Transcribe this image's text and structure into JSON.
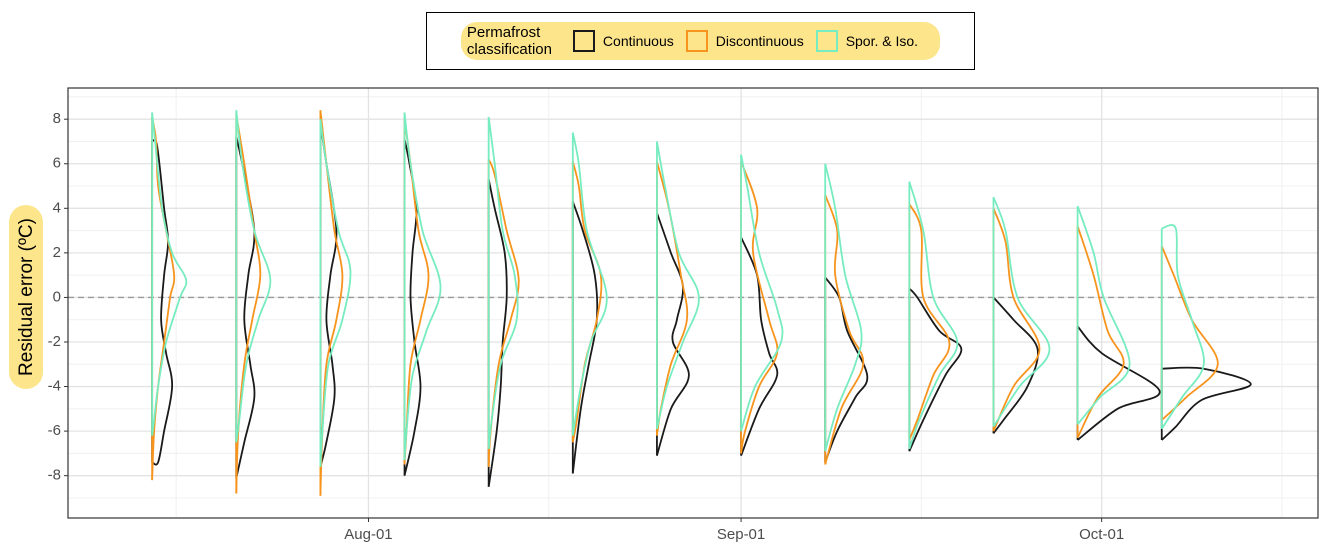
{
  "chart_data": {
    "type": "violin",
    "y_label": "Residual error (ºC)",
    "legend_title": "Permafrost classification",
    "legend_position": "top",
    "grid": true,
    "xlim": [
      "Jul-07",
      "Oct-19"
    ],
    "xticks": [
      "Aug-01",
      "Sep-01",
      "Oct-01"
    ],
    "x_minor_grid": [
      "Jul-16",
      "Aug-16",
      "Sep-16",
      "Oct-16"
    ],
    "ylim": [
      -9.9,
      9.4
    ],
    "yticks": [
      -8,
      -6,
      -4,
      -2,
      0,
      2,
      4,
      6,
      8
    ],
    "y_minor_grid": [
      -9,
      -7,
      -5,
      -3,
      -1,
      1,
      3,
      5,
      7,
      9
    ],
    "hline": 0,
    "series": [
      {
        "name": "Continuous",
        "color": "#1a1a1a",
        "violins": [
          {
            "x": "Jul-14",
            "y": [
              7.0,
              6.8,
              4,
              2.5,
              1,
              -1,
              -2.5,
              -4,
              -6,
              -7.4,
              -7.4
            ],
            "density": [
              0,
              0.05,
              0.12,
              0.16,
              0.12,
              0.09,
              0.14,
              0.2,
              0.12,
              0.06,
              0
            ]
          },
          {
            "x": "Jul-21",
            "y": [
              7.2,
              6,
              3,
              1,
              -1,
              -3,
              -4.5,
              -6.5,
              -8.1
            ],
            "density": [
              0,
              0.06,
              0.18,
              0.12,
              0.08,
              0.14,
              0.18,
              0.08,
              0
            ]
          },
          {
            "x": "Jul-28",
            "y": [
              7.8,
              6,
              3,
              1,
              -1,
              -3,
              -4.5,
              -6.5,
              -7.6
            ],
            "density": [
              0,
              0.06,
              0.16,
              0.1,
              0.06,
              0.12,
              0.14,
              0.06,
              0
            ]
          },
          {
            "x": "Aug-04",
            "y": [
              7.1,
              6,
              4,
              2,
              0,
              -2,
              -4,
              -6,
              -8
            ],
            "density": [
              0,
              0.05,
              0.12,
              0.08,
              0.06,
              0.1,
              0.16,
              0.1,
              0
            ]
          },
          {
            "x": "Aug-11",
            "y": [
              5.3,
              4,
              2,
              0,
              -2,
              -4,
              -6,
              -8.5
            ],
            "density": [
              0,
              0.06,
              0.16,
              0.18,
              0.14,
              0.12,
              0.08,
              0
            ]
          },
          {
            "x": "Aug-18",
            "y": [
              4.3,
              3,
              1,
              -1,
              -3,
              -5,
              -7.9
            ],
            "density": [
              0,
              0.1,
              0.22,
              0.24,
              0.16,
              0.08,
              0
            ]
          },
          {
            "x": "Aug-25",
            "y": [
              3.8,
              2,
              0.5,
              -1,
              -2,
              -3.5,
              -5,
              -7.1
            ],
            "density": [
              0,
              0.14,
              0.26,
              0.2,
              0.16,
              0.32,
              0.14,
              0
            ]
          },
          {
            "x": "Sep-01",
            "y": [
              2.7,
              1,
              -1,
              -2.5,
              -3.5,
              -5,
              -7.1
            ],
            "density": [
              0,
              0.16,
              0.2,
              0.28,
              0.36,
              0.18,
              0
            ]
          },
          {
            "x": "Sep-08",
            "y": [
              0.9,
              0,
              -1.5,
              -3.5,
              -4.5,
              -6,
              -7.4
            ],
            "density": [
              0,
              0.14,
              0.22,
              0.42,
              0.3,
              0.12,
              0
            ]
          },
          {
            "x": "Sep-15",
            "y": [
              0.4,
              0,
              -1.5,
              -2.3,
              -3.5,
              -5.5,
              -6.9
            ],
            "density": [
              0,
              0.08,
              0.3,
              0.52,
              0.36,
              0.14,
              0
            ]
          },
          {
            "x": "Sep-22",
            "y": [
              0,
              -1,
              -2.3,
              -4,
              -5.5,
              -6.1
            ],
            "density": [
              0,
              0.2,
              0.44,
              0.34,
              0.1,
              0
            ]
          },
          {
            "x": "Sep-29",
            "y": [
              -1.3,
              -2.5,
              -4.2,
              -5,
              -6.4
            ],
            "density": [
              0,
              0.24,
              0.82,
              0.4,
              0
            ]
          },
          {
            "x": "Oct-06",
            "y": [
              -3.2,
              -3.2,
              -3.9,
              -4.6,
              -5.8,
              -6.4
            ],
            "density": [
              0,
              0.42,
              0.89,
              0.4,
              0.14,
              0
            ]
          }
        ]
      },
      {
        "name": "Discontinuous",
        "color": "#f7941d",
        "violins": [
          {
            "x": "Jul-14",
            "y": [
              8.1,
              7,
              5,
              3,
              1,
              0,
              -2,
              -4,
              -6,
              -8.2
            ],
            "density": [
              0,
              0.04,
              0.06,
              0.14,
              0.22,
              0.18,
              0.12,
              0.06,
              0.02,
              0
            ]
          },
          {
            "x": "Jul-21",
            "y": [
              8.2,
              6,
              3,
              1,
              -1,
              -3,
              -6,
              -8.8
            ],
            "density": [
              0,
              0.08,
              0.18,
              0.24,
              0.16,
              0.08,
              0.02,
              0
            ]
          },
          {
            "x": "Jul-28",
            "y": [
              8.4,
              6,
              3,
              1,
              -1,
              -3,
              -6,
              -8.9
            ],
            "density": [
              0,
              0.06,
              0.14,
              0.22,
              0.16,
              0.06,
              0.02,
              0
            ]
          },
          {
            "x": "Aug-04",
            "y": [
              8,
              6,
              3,
              1,
              -1,
              -3,
              -6,
              -7.5
            ],
            "density": [
              0,
              0.06,
              0.14,
              0.24,
              0.16,
              0.06,
              0.02,
              0
            ]
          },
          {
            "x": "Aug-11",
            "y": [
              6.2,
              5.5,
              3,
              0.8,
              -1,
              -3,
              -6,
              -7.6
            ],
            "density": [
              0,
              0.06,
              0.18,
              0.3,
              0.22,
              0.1,
              0.02,
              0
            ]
          },
          {
            "x": "Aug-18",
            "y": [
              6.1,
              5,
              3,
              1,
              -1,
              -3,
              -5.5,
              -6.5
            ],
            "density": [
              0,
              0.06,
              0.12,
              0.28,
              0.24,
              0.12,
              0.04,
              0
            ]
          },
          {
            "x": "Aug-25",
            "y": [
              6.1,
              4,
              1,
              -1,
              -3,
              -5,
              -6.2
            ],
            "density": [
              0,
              0.12,
              0.24,
              0.3,
              0.14,
              0.04,
              0
            ]
          },
          {
            "x": "Sep-01",
            "y": [
              6.1,
              4,
              2,
              -1,
              -2.5,
              -4,
              -6,
              -7
            ],
            "density": [
              0,
              0.16,
              0.12,
              0.28,
              0.36,
              0.18,
              0.04,
              0
            ]
          },
          {
            "x": "Sep-08",
            "y": [
              4.6,
              3,
              1,
              -1.5,
              -3,
              -5,
              -7.5
            ],
            "density": [
              0,
              0.12,
              0.1,
              0.24,
              0.38,
              0.16,
              0
            ]
          },
          {
            "x": "Sep-15",
            "y": [
              4.2,
              3,
              0,
              -2,
              -3.5,
              -5.5,
              -6.4
            ],
            "density": [
              0,
              0.12,
              0.14,
              0.4,
              0.24,
              0.08,
              0
            ]
          },
          {
            "x": "Sep-22",
            "y": [
              4,
              2.5,
              0,
              -2.3,
              -4,
              -6
            ],
            "density": [
              0,
              0.12,
              0.2,
              0.46,
              0.2,
              0
            ]
          },
          {
            "x": "Sep-29",
            "y": [
              3.2,
              1,
              -1.5,
              -3,
              -4.5,
              -6.3
            ],
            "density": [
              0,
              0.16,
              0.3,
              0.46,
              0.2,
              0
            ]
          },
          {
            "x": "Oct-06",
            "y": [
              2.3,
              1,
              -1,
              -3,
              -4.5,
              -5.5
            ],
            "density": [
              0,
              0.12,
              0.3,
              0.56,
              0.24,
              0
            ]
          }
        ]
      },
      {
        "name": "Spor. & Iso.",
        "color": "#76ecc0",
        "violins": [
          {
            "x": "Jul-14",
            "y": [
              8.3,
              7,
              4,
              2,
              0.8,
              0,
              -2,
              -4,
              -5.5,
              -6.2
            ],
            "density": [
              0,
              0.03,
              0.1,
              0.2,
              0.34,
              0.28,
              0.14,
              0.06,
              0.02,
              0
            ]
          },
          {
            "x": "Jul-21",
            "y": [
              8.4,
              6,
              3,
              0.8,
              -1,
              -3,
              -5.5,
              -6.5
            ],
            "density": [
              0,
              0.06,
              0.18,
              0.34,
              0.22,
              0.1,
              0.03,
              0
            ]
          },
          {
            "x": "Jul-28",
            "y": [
              8,
              6,
              3,
              1.2,
              -1,
              -3,
              -6,
              -7.6
            ],
            "density": [
              0,
              0.06,
              0.18,
              0.3,
              0.22,
              0.08,
              0.02,
              0
            ]
          },
          {
            "x": "Aug-04",
            "y": [
              8.3,
              6,
              3,
              0.5,
              -1.5,
              -3.5,
              -6,
              -7.3
            ],
            "density": [
              0,
              0.06,
              0.18,
              0.36,
              0.22,
              0.08,
              0.02,
              0
            ]
          },
          {
            "x": "Aug-11",
            "y": [
              8.1,
              6,
              3,
              1,
              -1,
              -3,
              -5.5,
              -6.8
            ],
            "density": [
              0,
              0.06,
              0.14,
              0.26,
              0.28,
              0.12,
              0.03,
              0
            ]
          },
          {
            "x": "Aug-18",
            "y": [
              7.4,
              6,
              3,
              0,
              -2,
              -4,
              -6.2
            ],
            "density": [
              0,
              0.06,
              0.14,
              0.34,
              0.18,
              0.08,
              0
            ]
          },
          {
            "x": "Aug-25",
            "y": [
              7,
              5,
              2,
              0,
              -2,
              -4,
              -5.9
            ],
            "density": [
              0,
              0.08,
              0.22,
              0.42,
              0.26,
              0.1,
              0
            ]
          },
          {
            "x": "Sep-01",
            "y": [
              6.4,
              5,
              2,
              -0.5,
              -2,
              -4,
              -6
            ],
            "density": [
              0,
              0.06,
              0.18,
              0.36,
              0.4,
              0.14,
              0
            ]
          },
          {
            "x": "Sep-08",
            "y": [
              6,
              4,
              1,
              -1.5,
              -3,
              -5,
              -6.9
            ],
            "density": [
              0,
              0.1,
              0.2,
              0.36,
              0.3,
              0.12,
              0
            ]
          },
          {
            "x": "Sep-15",
            "y": [
              5.2,
              3,
              0,
              -2,
              -3.5,
              -5.5,
              -6.8
            ],
            "density": [
              0,
              0.14,
              0.24,
              0.48,
              0.3,
              0.1,
              0
            ]
          },
          {
            "x": "Sep-22",
            "y": [
              4.5,
              3,
              0,
              -2.3,
              -4,
              -5.8
            ],
            "density": [
              0,
              0.12,
              0.24,
              0.56,
              0.26,
              0
            ]
          },
          {
            "x": "Sep-29",
            "y": [
              4.1,
              2,
              0,
              -3,
              -4.5,
              -5.7
            ],
            "density": [
              0,
              0.16,
              0.26,
              0.52,
              0.22,
              0
            ]
          },
          {
            "x": "Oct-06",
            "y": [
              3.1,
              3.1,
              1,
              -1,
              -3,
              -4.5,
              -5.9
            ],
            "density": [
              0,
              0.14,
              0.16,
              0.3,
              0.42,
              0.2,
              0
            ]
          }
        ]
      }
    ]
  }
}
